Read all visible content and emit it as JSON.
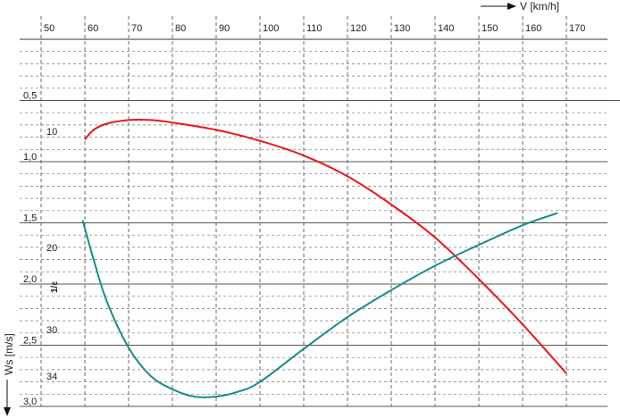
{
  "chart_data": {
    "type": "line",
    "x_axis": {
      "label": "V [km/h]",
      "range": [
        45,
        177
      ],
      "ticks": [
        50,
        60,
        70,
        80,
        90,
        100,
        110,
        120,
        130,
        140,
        150,
        160,
        170
      ]
    },
    "y_axis_sink": {
      "label": "Ws [m/s]",
      "range": [
        0,
        3.0
      ],
      "ticks": [
        {
          "value": 0.5,
          "label": "0,5"
        },
        {
          "value": 1.0,
          "label": "1,0"
        },
        {
          "value": 1.5,
          "label": "1,5"
        },
        {
          "value": 2.0,
          "label": "2,0"
        },
        {
          "value": 2.5,
          "label": "2,5"
        },
        {
          "value": 3.0,
          "label": "3,0"
        }
      ]
    },
    "y_axis_glide": {
      "label": "1/ε",
      "ticks": [
        {
          "value": 10,
          "label": "10"
        },
        {
          "value": 20,
          "label": "20"
        },
        {
          "value": 30,
          "label": "30"
        },
        {
          "value": 34,
          "label": "34"
        }
      ]
    },
    "grid": true,
    "series": [
      {
        "color": "#e8161b",
        "axis": "sink",
        "points": [
          [
            60,
            0.82
          ],
          [
            62,
            0.74
          ],
          [
            65,
            0.69
          ],
          [
            70,
            0.66
          ],
          [
            75,
            0.66
          ],
          [
            80,
            0.68
          ],
          [
            90,
            0.74
          ],
          [
            100,
            0.83
          ],
          [
            110,
            0.95
          ],
          [
            120,
            1.12
          ],
          [
            130,
            1.35
          ],
          [
            140,
            1.62
          ],
          [
            150,
            1.96
          ],
          [
            160,
            2.33
          ],
          [
            170,
            2.73
          ]
        ]
      },
      {
        "color": "#1a8a8a",
        "axis": "sink",
        "points": [
          [
            59.5,
            1.48
          ],
          [
            62,
            1.8
          ],
          [
            65,
            2.14
          ],
          [
            70,
            2.52
          ],
          [
            75,
            2.75
          ],
          [
            80,
            2.86
          ],
          [
            85,
            2.92
          ],
          [
            90,
            2.92
          ],
          [
            95,
            2.88
          ],
          [
            100,
            2.8
          ],
          [
            110,
            2.53
          ],
          [
            120,
            2.27
          ],
          [
            130,
            2.05
          ],
          [
            140,
            1.85
          ],
          [
            150,
            1.68
          ],
          [
            160,
            1.52
          ],
          [
            168,
            1.42
          ]
        ]
      }
    ]
  }
}
